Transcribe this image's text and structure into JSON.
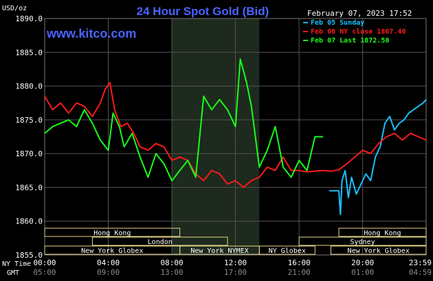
{
  "header": {
    "title": "24 Hour Spot Gold (Bid)",
    "unit": "USD/oz",
    "datetime": "February 07, 2023 17:52",
    "watermark": "www.kitco.com"
  },
  "colors": {
    "background": "#000000",
    "plot_bg": "#000000",
    "shade": "#1d2a1d",
    "grid": "#555555",
    "axis_text": "#ffffff",
    "gmt_text": "#8c8c8c",
    "title": "#4a64ff",
    "watermark": "#4a64ff",
    "session_box": "#e8d68a",
    "session_text": "#ffffff",
    "feb05": "#19c0ff",
    "feb06": "#ff1a1a",
    "feb07": "#19ff19"
  },
  "legend": [
    {
      "label": "Feb 05 Sunday",
      "color": "#19c0ff"
    },
    {
      "label": "Feb 06 NY close 1867.40",
      "color": "#ff1a1a"
    },
    {
      "label": "Feb 07 Last 1872.50",
      "color": "#19ff19"
    }
  ],
  "axis": {
    "y_ticks": [
      "1890.0",
      "1885.0",
      "1880.0",
      "1875.0",
      "1870.0",
      "1865.0",
      "1860.0",
      "1855.0"
    ],
    "x_row_label": "NY Time",
    "x_ticks": [
      "00:00",
      "04:00",
      "08:00",
      "12:00",
      "16:00",
      "20:00",
      "23:59"
    ],
    "gmt_row_label": "GMT",
    "gmt_ticks": [
      "05:00",
      "09:00",
      "13:00",
      "17:00",
      "21:00",
      "01:00",
      "04:59"
    ]
  },
  "sessions": [
    {
      "name": "Hong Kong",
      "row": 0,
      "start": 0.0,
      "end": 8.5
    },
    {
      "name": "Hong Kong",
      "row": 0,
      "start": 18.5,
      "end": 23.99
    },
    {
      "name": "London",
      "row": 1,
      "start": 3.0,
      "end": 11.5
    },
    {
      "name": "Sydney",
      "row": 1,
      "start": 16.0,
      "end": 23.99
    },
    {
      "name": "New York Globex",
      "row": 2,
      "start": 0.0,
      "end": 8.5
    },
    {
      "name": "New York NYMEX",
      "row": 2,
      "start": 8.5,
      "end": 13.5
    },
    {
      "name": "NY Globex",
      "row": 2,
      "start": 13.5,
      "end": 17.0
    },
    {
      "name": "New York Globex",
      "row": 2,
      "start": 18.0,
      "end": 23.99
    }
  ],
  "chart_data": {
    "type": "line",
    "title": "24 Hour Spot Gold (Bid)",
    "ylabel": "USD/oz",
    "xlabel": "NY Time",
    "ylim": [
      1855.0,
      1890.0
    ],
    "xlim": [
      0,
      23.99
    ],
    "grid": true,
    "legend_position": "top-right",
    "shaded_hours": [
      8.0,
      13.5
    ],
    "series": [
      {
        "name": "Feb 05 Sunday",
        "color": "#19c0ff",
        "x": [
          17.9,
          18.5,
          18.6,
          18.7,
          18.9,
          19.1,
          19.3,
          19.6,
          19.9,
          20.2,
          20.5,
          20.8,
          21.1,
          21.4,
          21.7,
          22.0,
          22.3,
          22.6,
          22.9,
          23.2,
          23.5,
          23.8,
          23.99
        ],
        "y": [
          1864.5,
          1864.5,
          1861.0,
          1866.0,
          1867.5,
          1863.5,
          1866.5,
          1864.0,
          1865.5,
          1867.0,
          1866.0,
          1869.5,
          1871.0,
          1874.5,
          1875.5,
          1873.5,
          1874.5,
          1875.0,
          1876.0,
          1876.5,
          1877.0,
          1877.5,
          1878.0
        ]
      },
      {
        "name": "Feb 06 NY close 1867.40",
        "color": "#ff1a1a",
        "x": [
          0,
          0.5,
          1.0,
          1.5,
          2.0,
          2.5,
          3.0,
          3.5,
          3.8,
          4.1,
          4.4,
          4.8,
          5.2,
          5.6,
          6.0,
          6.5,
          7.0,
          7.5,
          8.0,
          8.5,
          9.0,
          9.5,
          10.0,
          10.5,
          11.0,
          11.5,
          12.0,
          12.5,
          13.0,
          13.5,
          14.0,
          14.5,
          15.0,
          15.5,
          16.0,
          16.5,
          17.0,
          17.5,
          18.0,
          18.5,
          19.0,
          19.5,
          20.0,
          20.5,
          21.0,
          21.5,
          22.0,
          22.5,
          23.0,
          23.5,
          23.99
        ],
        "y": [
          1878.5,
          1876.5,
          1877.5,
          1876.0,
          1877.5,
          1877.0,
          1875.5,
          1877.5,
          1879.5,
          1880.5,
          1876.5,
          1874.0,
          1874.5,
          1873.0,
          1871.0,
          1870.5,
          1871.5,
          1871.0,
          1869.0,
          1869.5,
          1869.0,
          1867.0,
          1866.0,
          1867.5,
          1867.0,
          1865.5,
          1866.0,
          1865.0,
          1866.0,
          1866.5,
          1868.0,
          1867.5,
          1869.5,
          1867.5,
          1867.5,
          1867.3,
          1867.4,
          1867.5,
          1867.4,
          1867.6,
          1868.5,
          1869.5,
          1870.5,
          1870.0,
          1871.5,
          1872.5,
          1873.0,
          1872.0,
          1873.0,
          1872.5,
          1872.0
        ]
      },
      {
        "name": "Feb 07 Last 1872.50",
        "color": "#19ff19",
        "x": [
          0,
          0.5,
          1.0,
          1.5,
          2.0,
          2.5,
          3.0,
          3.5,
          4.0,
          4.3,
          4.7,
          5.0,
          5.5,
          6.0,
          6.5,
          7.0,
          7.5,
          8.0,
          8.5,
          9.0,
          9.5,
          10.0,
          10.5,
          11.0,
          11.5,
          12.0,
          12.3,
          12.7,
          13.0,
          13.5,
          14.0,
          14.5,
          15.0,
          15.5,
          16.0,
          16.5,
          17.0,
          17.5
        ],
        "y": [
          1873.0,
          1874.0,
          1874.5,
          1875.0,
          1874.0,
          1876.5,
          1874.5,
          1872.0,
          1870.5,
          1876.0,
          1874.0,
          1871.0,
          1873.0,
          1869.5,
          1866.5,
          1870.0,
          1868.5,
          1866.0,
          1867.5,
          1869.0,
          1866.5,
          1878.5,
          1876.5,
          1878.0,
          1876.5,
          1874.0,
          1884.0,
          1880.5,
          1877.0,
          1868.0,
          1870.5,
          1874.0,
          1868.0,
          1866.5,
          1869.0,
          1867.5,
          1872.5,
          1872.5
        ]
      }
    ]
  }
}
